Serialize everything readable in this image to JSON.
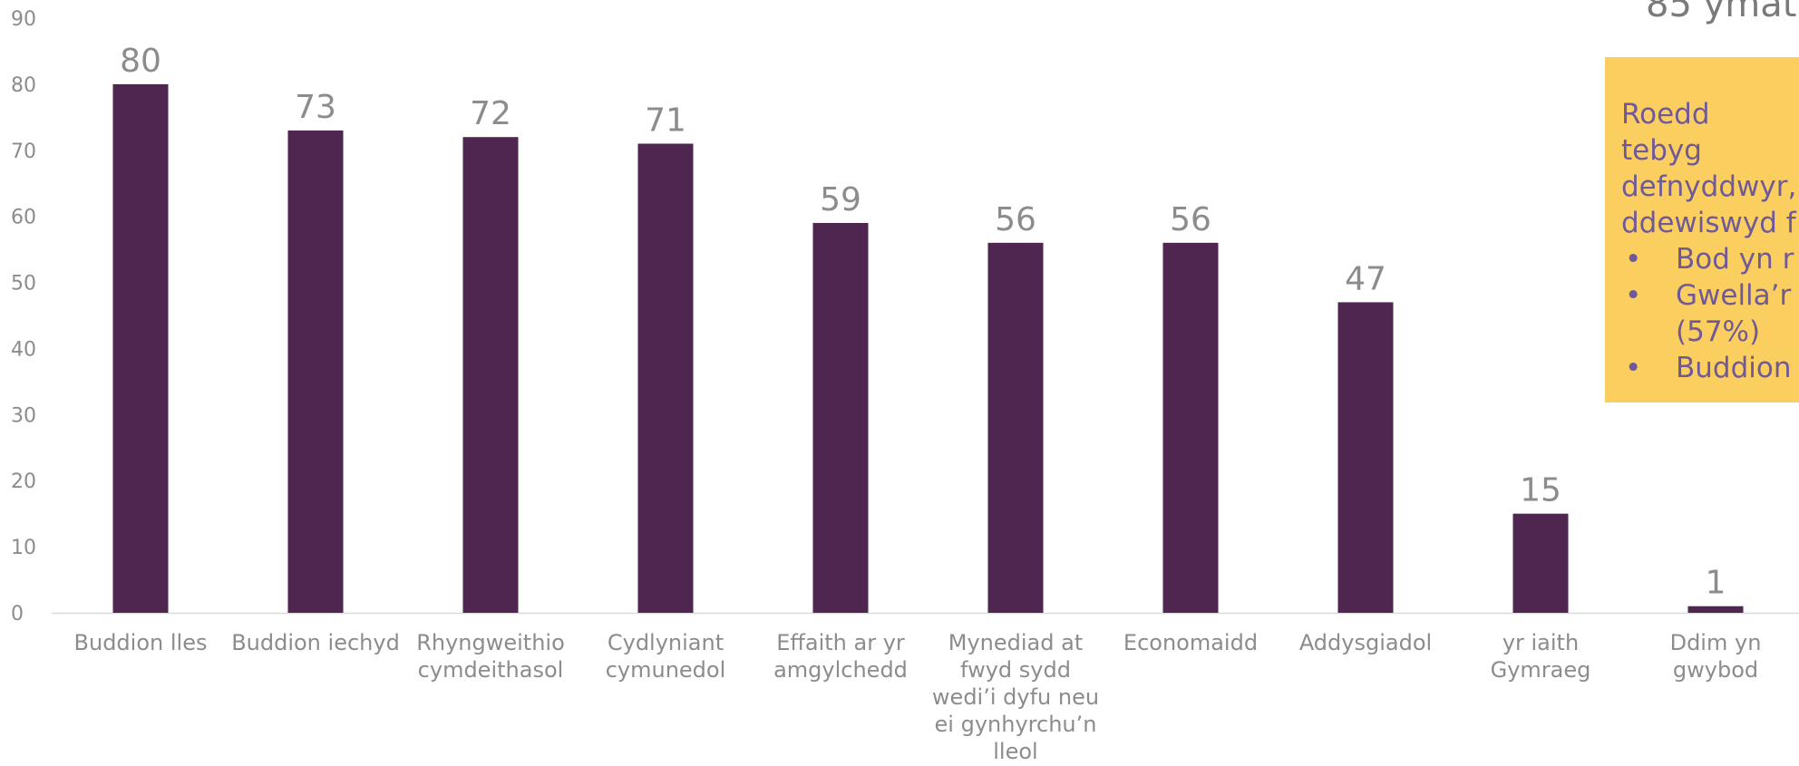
{
  "page": {
    "title": "85 ymat"
  },
  "callout": {
    "intro": "Roedd tebyg\ndefnyddwyr,\nddewiswyd f",
    "bullets": [
      {
        "text": "Bod yn r"
      },
      {
        "text": "Gwella’r\n(57%)"
      },
      {
        "text": "Buddion"
      }
    ],
    "bullet_glyph": "•",
    "background_color": "#fbcf5f",
    "text_color": "#6f5a97"
  },
  "chart_data": {
    "type": "bar",
    "categories": [
      "Buddion lles",
      "Buddion iechyd",
      "Rhyngweithio cymdeithasol",
      "Cydlyniant cymunedol",
      "Effaith ar yr amgylchedd",
      "Mynediad at fwyd sydd wedi’i dyfu neu ei gynhyrchu’n lleol",
      "Economaidd",
      "Addysgiadol",
      "yr iaith Gymraeg",
      "Ddim yn gwybod"
    ],
    "category_label_lines": [
      [
        "Buddion lles"
      ],
      [
        "Buddion iechyd"
      ],
      [
        "Rhyngweithio",
        "cymdeithasol"
      ],
      [
        "Cydlyniant",
        "cymunedol"
      ],
      [
        "Effaith ar yr",
        "amgylchedd"
      ],
      [
        "Mynediad at",
        "fwyd sydd",
        "wedi’i dyfu neu",
        "ei gynhyrchu’n",
        "lleol"
      ],
      [
        "Economaidd"
      ],
      [
        "Addysgiadol"
      ],
      [
        "yr iaith",
        "Gymraeg"
      ],
      [
        "Ddim yn",
        "gwybod"
      ]
    ],
    "values": [
      80,
      73,
      72,
      71,
      59,
      56,
      56,
      47,
      15,
      1
    ],
    "data_labels": [
      "80",
      "73",
      "72",
      "71",
      "59",
      "56",
      "56",
      "47",
      "15",
      "1"
    ],
    "ylim": [
      0,
      90
    ],
    "yticks": [
      0,
      10,
      20,
      30,
      40,
      50,
      60,
      70,
      80,
      90
    ],
    "ytick_labels": [
      "0",
      "10",
      "20",
      "30",
      "40",
      "50",
      "60",
      "70",
      "80",
      "90"
    ],
    "grid": false,
    "bar_color": "#4e264f",
    "axis_color": "#d9d9d9",
    "text_color": "#8c8c8c"
  }
}
